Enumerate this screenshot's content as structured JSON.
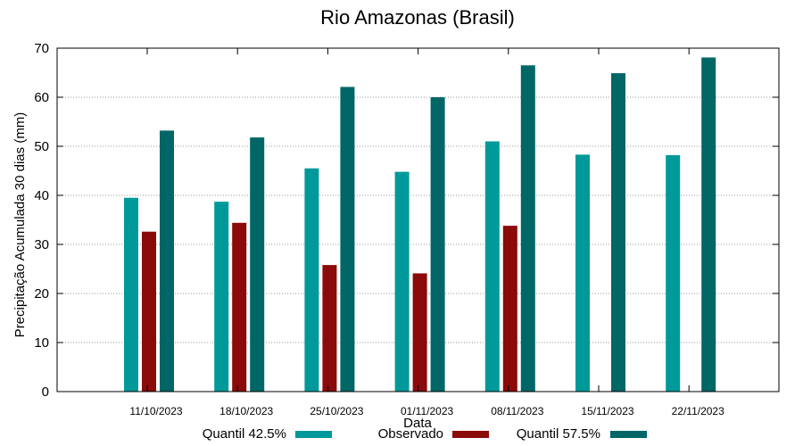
{
  "chart_data": {
    "type": "bar",
    "title": "Rio Amazonas (Brasil)",
    "xlabel": "Data",
    "ylabel": "Precipitação Acumulada 30 dias (mm)",
    "ylim": [
      0,
      70
    ],
    "yticks": [
      0,
      10,
      20,
      30,
      40,
      50,
      60,
      70
    ],
    "grid": true,
    "legend_position": "bottom",
    "categories": [
      "11/10/2023",
      "18/10/2023",
      "25/10/2023",
      "01/11/2023",
      "08/11/2023",
      "15/11/2023",
      "22/11/2023"
    ],
    "series": [
      {
        "name": "Quantil 42.5%",
        "color": "#009999",
        "values": [
          39.5,
          38.7,
          45.5,
          44.8,
          51.0,
          48.3,
          48.2
        ]
      },
      {
        "name": "Observado",
        "color": "#8b0a0a",
        "values": [
          32.6,
          34.4,
          25.8,
          24.1,
          33.8,
          null,
          null
        ]
      },
      {
        "name": "Quantil 57.5%",
        "color": "#006666",
        "values": [
          53.2,
          51.8,
          62.1,
          60.0,
          66.5,
          64.9,
          68.1
        ]
      }
    ]
  }
}
